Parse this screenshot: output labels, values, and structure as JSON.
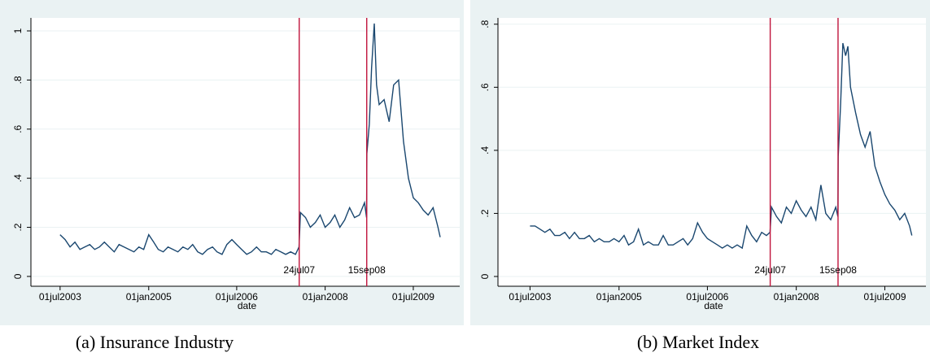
{
  "chart_data": [
    {
      "type": "line",
      "caption": "(a) Insurance Industry",
      "x_label": "date",
      "color": "#1a476f",
      "grid": true,
      "x": [
        "2003-07-01",
        "2003-08-01",
        "2003-09-01",
        "2003-10-01",
        "2003-11-01",
        "2003-12-01",
        "2004-01-01",
        "2004-02-01",
        "2004-03-01",
        "2004-04-01",
        "2004-05-01",
        "2004-06-01",
        "2004-07-01",
        "2004-08-01",
        "2004-09-01",
        "2004-10-01",
        "2004-11-01",
        "2004-12-01",
        "2005-01-01",
        "2005-02-01",
        "2005-03-01",
        "2005-04-01",
        "2005-05-01",
        "2005-06-01",
        "2005-07-01",
        "2005-08-01",
        "2005-09-01",
        "2005-10-01",
        "2005-11-01",
        "2005-12-01",
        "2006-01-01",
        "2006-02-01",
        "2006-03-01",
        "2006-04-01",
        "2006-05-01",
        "2006-06-01",
        "2006-07-01",
        "2006-08-01",
        "2006-09-01",
        "2006-10-01",
        "2006-11-01",
        "2006-12-01",
        "2007-01-01",
        "2007-02-01",
        "2007-03-01",
        "2007-04-01",
        "2007-05-01",
        "2007-06-01",
        "2007-07-01",
        "2007-07-23",
        "2007-08-01",
        "2007-09-01",
        "2007-10-01",
        "2007-11-01",
        "2007-12-01",
        "2008-01-01",
        "2008-02-01",
        "2008-03-01",
        "2008-04-01",
        "2008-05-01",
        "2008-06-01",
        "2008-07-01",
        "2008-08-01",
        "2008-09-01",
        "2008-09-14",
        "2008-09-16",
        "2008-10-01",
        "2008-10-15",
        "2008-11-01",
        "2008-11-15",
        "2008-12-01",
        "2009-01-01",
        "2009-02-01",
        "2009-03-01",
        "2009-04-01",
        "2009-05-01",
        "2009-06-01",
        "2009-07-01",
        "2009-08-01",
        "2009-09-01",
        "2009-10-01",
        "2009-11-01",
        "2009-12-01",
        "2009-12-15"
      ],
      "values": [
        0.17,
        0.15,
        0.12,
        0.14,
        0.11,
        0.12,
        0.13,
        0.11,
        0.12,
        0.14,
        0.12,
        0.1,
        0.13,
        0.12,
        0.11,
        0.1,
        0.12,
        0.11,
        0.17,
        0.14,
        0.11,
        0.1,
        0.12,
        0.11,
        0.1,
        0.12,
        0.11,
        0.13,
        0.1,
        0.09,
        0.11,
        0.12,
        0.1,
        0.09,
        0.13,
        0.15,
        0.13,
        0.11,
        0.09,
        0.1,
        0.12,
        0.1,
        0.1,
        0.09,
        0.11,
        0.1,
        0.09,
        0.1,
        0.09,
        0.12,
        0.26,
        0.24,
        0.2,
        0.22,
        0.25,
        0.2,
        0.22,
        0.25,
        0.2,
        0.23,
        0.28,
        0.24,
        0.25,
        0.3,
        0.24,
        0.5,
        0.62,
        0.85,
        1.03,
        0.78,
        0.7,
        0.72,
        0.63,
        0.78,
        0.8,
        0.55,
        0.4,
        0.32,
        0.3,
        0.27,
        0.25,
        0.28,
        0.2,
        0.16
      ],
      "xlim": [
        "2003-01-01",
        "2010-04-15"
      ],
      "xticks": [
        {
          "value": "2003-07-01",
          "label": "01jul2003"
        },
        {
          "value": "2005-01-01",
          "label": "01jan2005"
        },
        {
          "value": "2006-07-01",
          "label": "01jul2006"
        },
        {
          "value": "2008-01-01",
          "label": "01jan2008"
        },
        {
          "value": "2009-07-01",
          "label": "01jul2009"
        }
      ],
      "ylim": [
        -0.04,
        1.053
      ],
      "yticks": [
        0,
        {
          "value": 0.2,
          "label": ".2"
        },
        {
          "value": 0.4,
          "label": ".4"
        },
        {
          "value": 0.6,
          "label": ".6"
        },
        {
          "value": 0.8,
          "label": ".8"
        },
        1
      ],
      "vlines": [
        {
          "x": "2007-07-24",
          "label": "24jul07"
        },
        {
          "x": "2008-09-15",
          "label": "15sep08"
        }
      ],
      "vline_color": "#c0143c"
    },
    {
      "type": "line",
      "caption": "(b) Market Index",
      "x_label": "date",
      "color": "#1a476f",
      "grid": true,
      "x": [
        "2003-07-01",
        "2003-08-01",
        "2003-09-01",
        "2003-10-01",
        "2003-11-01",
        "2003-12-01",
        "2004-01-01",
        "2004-02-01",
        "2004-03-01",
        "2004-04-01",
        "2004-05-01",
        "2004-06-01",
        "2004-07-01",
        "2004-08-01",
        "2004-09-01",
        "2004-10-01",
        "2004-11-01",
        "2004-12-01",
        "2005-01-01",
        "2005-02-01",
        "2005-03-01",
        "2005-04-01",
        "2005-05-01",
        "2005-06-01",
        "2005-07-01",
        "2005-08-01",
        "2005-09-01",
        "2005-10-01",
        "2005-11-01",
        "2005-12-01",
        "2006-01-01",
        "2006-02-01",
        "2006-03-01",
        "2006-04-01",
        "2006-05-01",
        "2006-06-01",
        "2006-07-01",
        "2006-08-01",
        "2006-09-01",
        "2006-10-01",
        "2006-11-01",
        "2006-12-01",
        "2007-01-01",
        "2007-02-01",
        "2007-03-01",
        "2007-04-01",
        "2007-05-01",
        "2007-06-01",
        "2007-07-01",
        "2007-07-23",
        "2007-08-01",
        "2007-09-01",
        "2007-10-01",
        "2007-11-01",
        "2007-12-01",
        "2008-01-01",
        "2008-02-01",
        "2008-03-01",
        "2008-04-01",
        "2008-05-01",
        "2008-06-01",
        "2008-07-01",
        "2008-08-01",
        "2008-09-01",
        "2008-09-14",
        "2008-09-16",
        "2008-10-01",
        "2008-10-15",
        "2008-11-01",
        "2008-11-15",
        "2008-12-01",
        "2009-01-01",
        "2009-02-01",
        "2009-03-01",
        "2009-04-01",
        "2009-05-01",
        "2009-06-01",
        "2009-07-01",
        "2009-08-01",
        "2009-09-01",
        "2009-10-01",
        "2009-11-01",
        "2009-12-01",
        "2009-12-15"
      ],
      "values": [
        0.16,
        0.16,
        0.15,
        0.14,
        0.15,
        0.13,
        0.13,
        0.14,
        0.12,
        0.14,
        0.12,
        0.12,
        0.13,
        0.11,
        0.12,
        0.11,
        0.11,
        0.12,
        0.11,
        0.13,
        0.1,
        0.11,
        0.15,
        0.1,
        0.11,
        0.1,
        0.1,
        0.13,
        0.1,
        0.1,
        0.11,
        0.12,
        0.1,
        0.12,
        0.17,
        0.14,
        0.12,
        0.11,
        0.1,
        0.09,
        0.1,
        0.09,
        0.1,
        0.09,
        0.16,
        0.13,
        0.11,
        0.14,
        0.13,
        0.14,
        0.22,
        0.19,
        0.17,
        0.22,
        0.2,
        0.24,
        0.21,
        0.19,
        0.22,
        0.18,
        0.29,
        0.2,
        0.18,
        0.22,
        0.19,
        0.38,
        0.55,
        0.74,
        0.7,
        0.73,
        0.6,
        0.52,
        0.45,
        0.41,
        0.46,
        0.35,
        0.3,
        0.26,
        0.23,
        0.21,
        0.18,
        0.2,
        0.16,
        0.13
      ],
      "xlim": [
        "2002-12-15",
        "2010-03-12"
      ],
      "xticks": [
        {
          "value": "2003-07-01",
          "label": "01jul2003"
        },
        {
          "value": "2005-01-01",
          "label": "01jan2005"
        },
        {
          "value": "2006-07-01",
          "label": "01jul2006"
        },
        {
          "value": "2008-01-01",
          "label": "01jan2008"
        },
        {
          "value": "2009-07-01",
          "label": "01jul2009"
        }
      ],
      "ylim": [
        -0.031,
        0.82
      ],
      "yticks": [
        0,
        {
          "value": 0.2,
          "label": ".2"
        },
        {
          "value": 0.4,
          "label": ".4"
        },
        {
          "value": 0.6,
          "label": ".6"
        },
        {
          "value": 0.8,
          "label": ".8"
        }
      ],
      "vlines": [
        {
          "x": "2007-07-24",
          "label": "24jul07"
        },
        {
          "x": "2008-09-15",
          "label": "15sep08"
        }
      ],
      "vline_color": "#c0143c"
    }
  ]
}
